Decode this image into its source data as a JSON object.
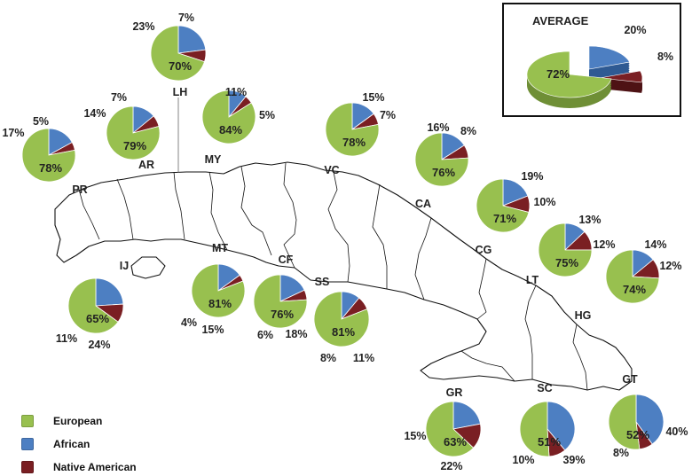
{
  "colors": {
    "european": "#98c04f",
    "african": "#4d7fc2",
    "native": "#7a1f23"
  },
  "legend": [
    {
      "key": "european",
      "label": "European"
    },
    {
      "key": "african",
      "label": "African"
    },
    {
      "key": "native",
      "label": "Native American"
    }
  ],
  "average": {
    "title": "AVERAGE",
    "european": 72,
    "african": 20,
    "native": 8
  },
  "chart_data": {
    "type": "pie",
    "series_order": [
      "European",
      "African",
      "Native American"
    ],
    "provinces": [
      {
        "code": "PR",
        "european": 78,
        "african": 17,
        "native": 5
      },
      {
        "code": "AR",
        "european": 79,
        "african": 14,
        "native": 7
      },
      {
        "code": "LH",
        "european": 70,
        "african": 23,
        "native": 7
      },
      {
        "code": "MY",
        "european": 84,
        "african": 11,
        "native": 5
      },
      {
        "code": "VC",
        "european": 78,
        "african": 15,
        "native": 7
      },
      {
        "code": "CA",
        "european": 76,
        "african": 16,
        "native": 8
      },
      {
        "code": "CG",
        "european": 71,
        "african": 19,
        "native": 10
      },
      {
        "code": "LT",
        "european": 75,
        "african": 13,
        "native": 12
      },
      {
        "code": "HG",
        "european": 74,
        "african": 14,
        "native": 12
      },
      {
        "code": "IJ",
        "european": 65,
        "african": 24,
        "native": 11
      },
      {
        "code": "MT",
        "european": 81,
        "african": 15,
        "native": 4
      },
      {
        "code": "CF",
        "european": 76,
        "african": 18,
        "native": 6
      },
      {
        "code": "SS",
        "european": 81,
        "african": 11,
        "native": 8
      },
      {
        "code": "GR",
        "european": 63,
        "african": 22,
        "native": 15
      },
      {
        "code": "SC",
        "european": 51,
        "african": 39,
        "native": 10
      },
      {
        "code": "GT",
        "european": 52,
        "african": 40,
        "native": 8
      }
    ]
  }
}
